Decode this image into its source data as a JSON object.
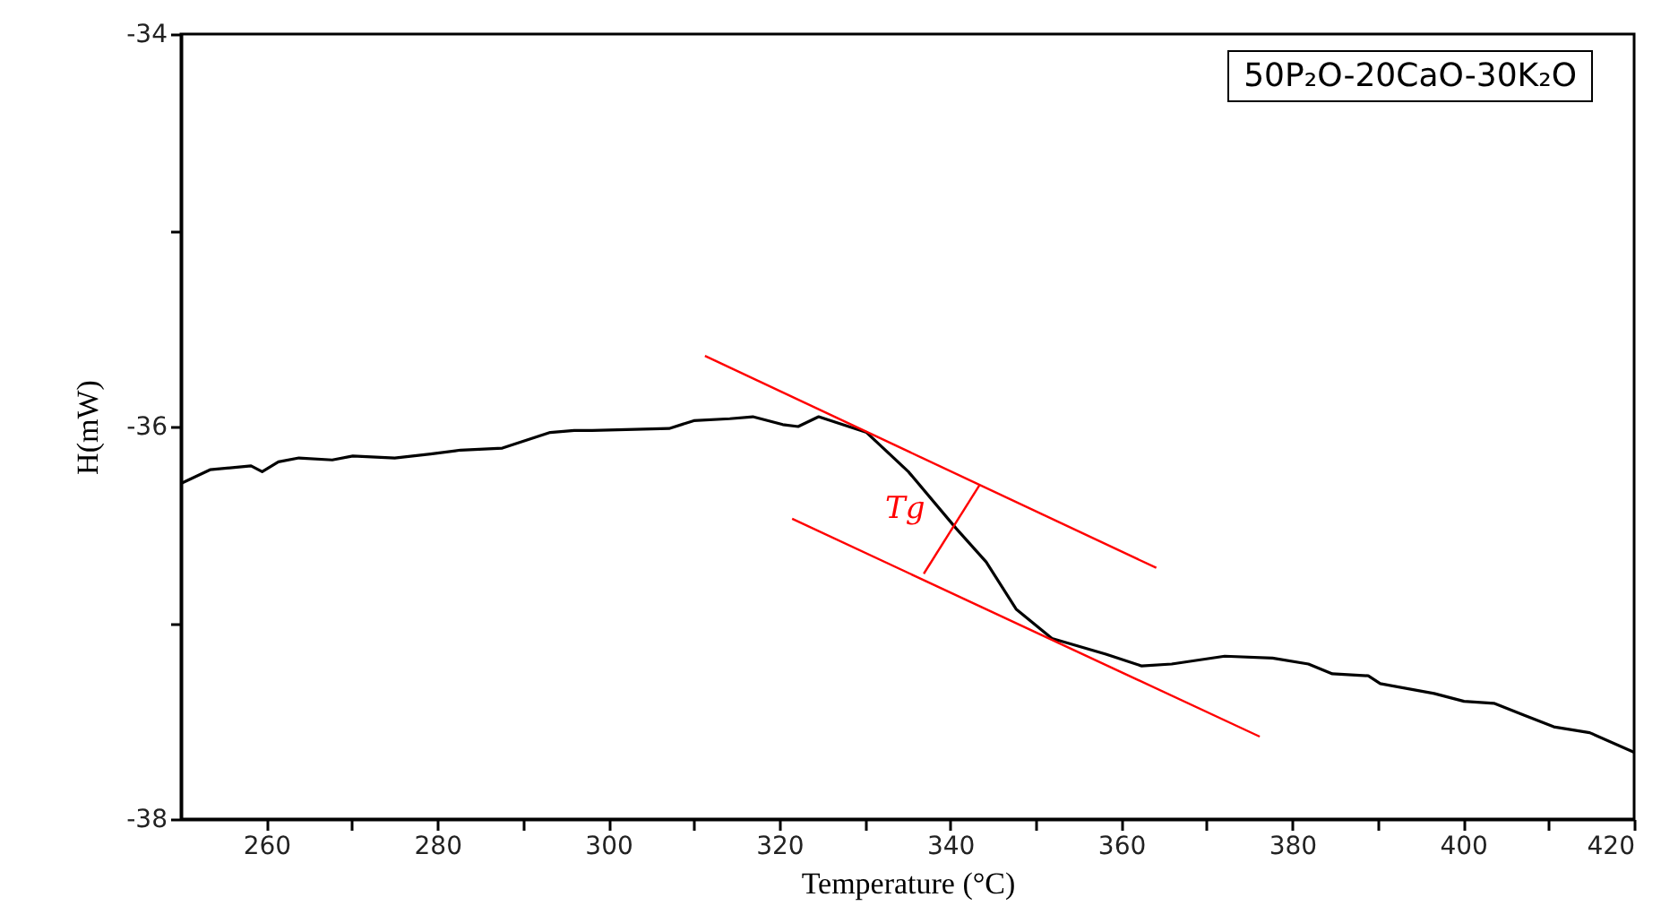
{
  "chart_data": {
    "type": "line",
    "xlabel": "Temperature (°C)",
    "ylabel": "H(mW)",
    "xlim": [
      250,
      420
    ],
    "ylim": [
      -38,
      -34
    ],
    "xticks": [
      260,
      {
        "value": 270,
        "label": null
      },
      280,
      {
        "value": 290,
        "label": null
      },
      300,
      {
        "value": 310,
        "label": null
      },
      320,
      {
        "value": 330,
        "label": null
      },
      340,
      {
        "value": 350,
        "label": null
      },
      360,
      {
        "value": 370,
        "label": null
      },
      380,
      {
        "value": 390,
        "label": null
      },
      400,
      {
        "value": 410,
        "label": null
      },
      420
    ],
    "yticks": [
      -38,
      {
        "value": -37,
        "label": null
      },
      -36,
      {
        "value": -35,
        "label": null
      },
      -34
    ],
    "grid": false,
    "marker": "none",
    "line_style": "solid",
    "series": [
      {
        "color": "#000000",
        "x": [
          250.0,
          253.4,
          258.2,
          259.5,
          261.4,
          263.8,
          267.7,
          270.1,
          275.0,
          279.2,
          282.7,
          287.6,
          290.4,
          293.2,
          296.0,
          298.1,
          307.1,
          310.0,
          314.2,
          316.9,
          320.4,
          322.2,
          324.6,
          330.2,
          335.1,
          340.7,
          344.2,
          347.7,
          351.9,
          358.2,
          362.4,
          365.9,
          372.1,
          377.7,
          381.9,
          384.7,
          388.9,
          390.3,
          396.6,
          400.1,
          403.6,
          407.1,
          410.6,
          414.8,
          420.0
        ],
        "values": [
          -36.29,
          -36.22,
          -36.2,
          -36.23,
          -36.18,
          -36.16,
          -36.17,
          -36.15,
          -36.16,
          -36.14,
          -36.12,
          -36.11,
          -36.07,
          -36.03,
          -36.02,
          -36.02,
          -36.01,
          -35.97,
          -35.96,
          -35.95,
          -35.99,
          -36.0,
          -35.95,
          -36.03,
          -36.23,
          -36.52,
          -36.69,
          -36.93,
          -37.08,
          -37.16,
          -37.22,
          -37.21,
          -37.17,
          -37.18,
          -37.21,
          -37.26,
          -37.27,
          -37.31,
          -37.36,
          -37.4,
          -37.41,
          -37.47,
          -37.53,
          -37.56,
          -37.66
        ]
      },
      {
        "type": "line",
        "color": "#ff0000",
        "x": [
          311.3,
          364.1
        ],
        "values": [
          -35.64,
          -36.72
        ]
      },
      {
        "type": "line",
        "color": "#ff0000",
        "x": [
          321.5,
          376.2
        ],
        "values": [
          -36.47,
          -37.58
        ]
      },
      {
        "type": "line",
        "color": "#ff0000",
        "x": [
          343.4,
          336.9
        ],
        "values": [
          -36.3,
          -36.75
        ]
      }
    ],
    "annotations": [
      "50P₂O-20CaO-30K₂O",
      "Tg"
    ]
  }
}
